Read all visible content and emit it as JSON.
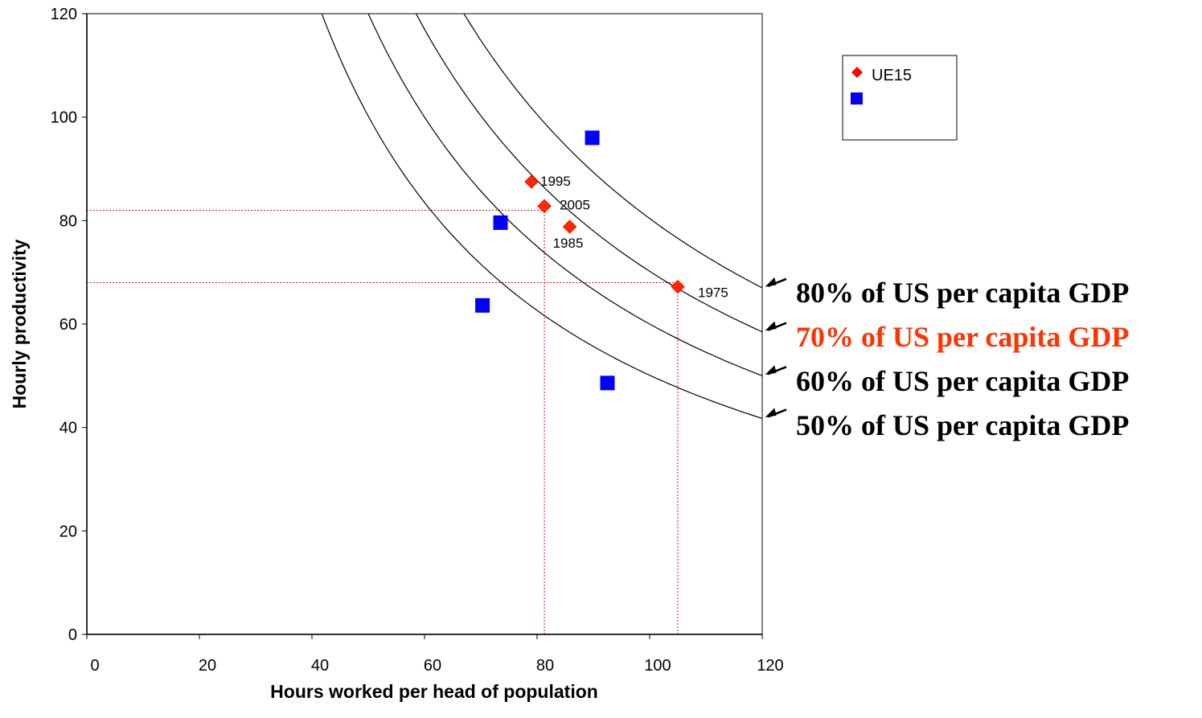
{
  "chart_data": {
    "type": "scatter",
    "title": "",
    "xlabel": "Hours worked per head of population",
    "ylabel": "Hourly productivity",
    "xlim": [
      0,
      120
    ],
    "ylim": [
      0,
      120
    ],
    "x_ticks": [
      "0",
      "20",
      "40",
      "60",
      "80",
      "100",
      "120"
    ],
    "y_ticks": [
      "0",
      "20",
      "40",
      "60",
      "80",
      "100",
      "120"
    ],
    "grid": false,
    "legend_position": "top-right",
    "series": [
      {
        "name": "UE15",
        "marker": "diamond",
        "color": "#ff0000",
        "points": [
          {
            "x": 105,
            "y": 67.2,
            "label": "1975"
          },
          {
            "x": 85.8,
            "y": 78.8,
            "label": "1985"
          },
          {
            "x": 79,
            "y": 87.5,
            "label": "1995"
          },
          {
            "x": 81.3,
            "y": 82.8,
            "label": "2005"
          }
        ]
      },
      {
        "name": "",
        "marker": "square",
        "color": "#0000ff",
        "points": [
          {
            "x": 89.8,
            "y": 96
          },
          {
            "x": 73.5,
            "y": 79.6
          },
          {
            "x": 70.3,
            "y": 63.6
          },
          {
            "x": 92.5,
            "y": 48.6
          }
        ]
      }
    ],
    "reference_lines": [
      {
        "orientation": "horizontal",
        "y": 82,
        "x_to": 81.3,
        "color": "#ff0000",
        "style": "dotted"
      },
      {
        "orientation": "horizontal",
        "y": 68,
        "x_to": 105,
        "color": "#ff0000",
        "style": "dotted"
      },
      {
        "orientation": "vertical",
        "x": 81.3,
        "y_to": 82,
        "color": "#ff0000",
        "style": "dotted"
      },
      {
        "orientation": "vertical",
        "x": 105,
        "y_to": 68,
        "color": "#ff0000",
        "style": "dotted"
      }
    ],
    "iso_curves": [
      {
        "label": "80% of US per capita GDP",
        "constant": 8040,
        "color": "#000000",
        "label_color": "#000000"
      },
      {
        "label": "70% of US per capita GDP",
        "constant": 7020,
        "color": "#000000",
        "label_color": "#ff3300"
      },
      {
        "label": "60% of US per capita GDP",
        "constant": 6000,
        "color": "#000000",
        "label_color": "#000000"
      },
      {
        "label": "50% of US per capita GDP",
        "constant": 5010,
        "color": "#000000",
        "label_color": "#000000"
      }
    ]
  }
}
